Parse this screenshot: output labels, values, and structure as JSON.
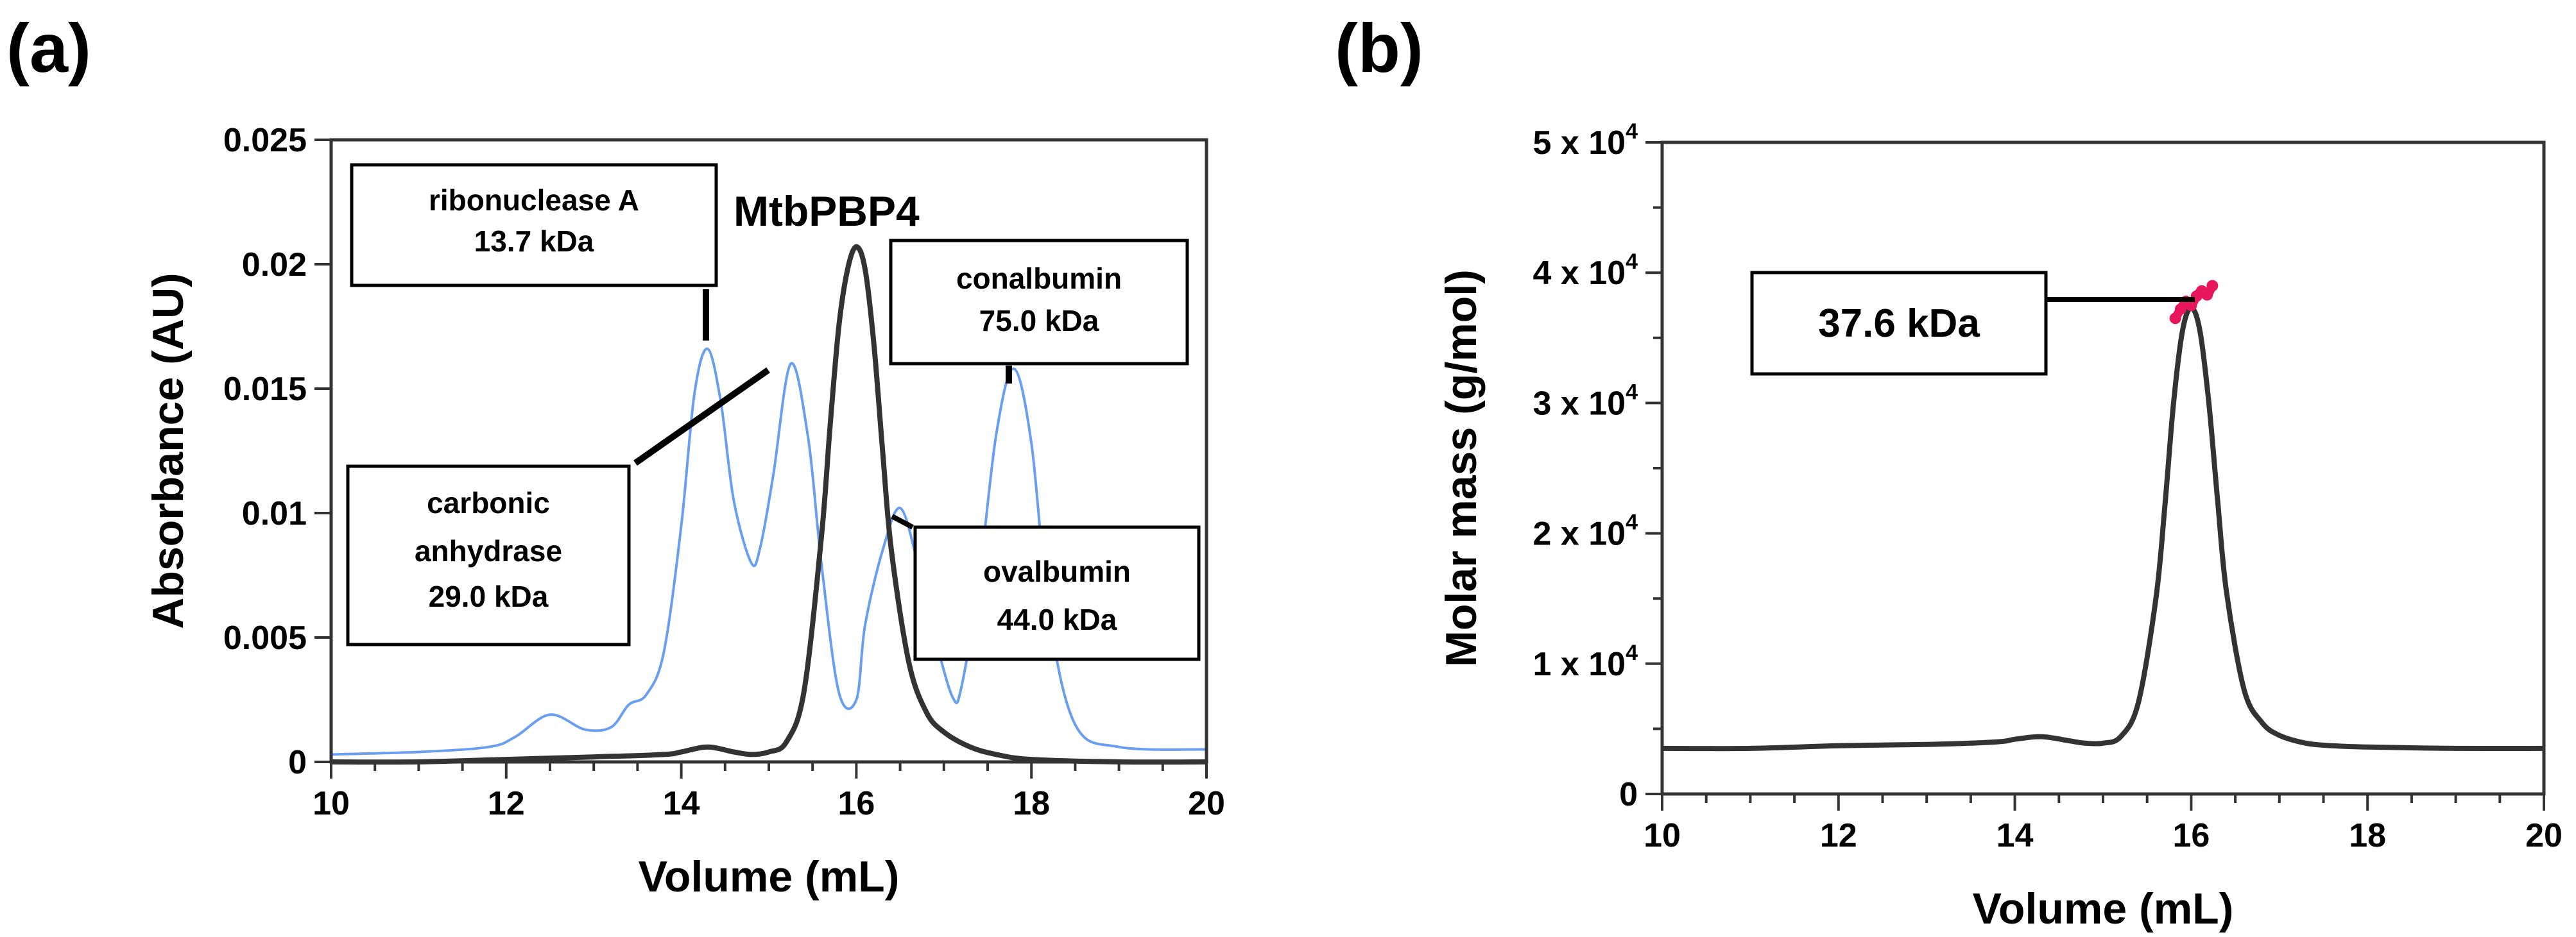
{
  "panels": {
    "a": {
      "label": "(a)"
    },
    "b": {
      "label": "(b)"
    }
  },
  "colors": {
    "standard": "#6a9ef0",
    "sample": "#333333",
    "molar_mass": "#e8175d"
  },
  "chart_data": [
    {
      "type": "line",
      "panel": "(a)",
      "xlabel": "Volume (mL)",
      "ylabel": "Absorbance (AU)",
      "xlim": [
        10,
        20
      ],
      "ylim": [
        0,
        0.025
      ],
      "xticks": [
        "10",
        "12",
        "14",
        "16",
        "18",
        "20"
      ],
      "yticks": [
        "0",
        "0.005",
        "0.01",
        "0.015",
        "0.02",
        "0.025"
      ],
      "grid": false,
      "series": [
        {
          "color": "#6a9ef0",
          "x": [
            10.0,
            11.0,
            11.8,
            12.1,
            12.5,
            12.9,
            13.2,
            13.4,
            13.6,
            13.8,
            14.0,
            14.15,
            14.3,
            14.45,
            14.6,
            14.8,
            14.9,
            15.05,
            15.25,
            15.45,
            15.6,
            15.8,
            16.0,
            16.1,
            16.3,
            16.5,
            16.7,
            16.9,
            17.1,
            17.2,
            17.4,
            17.6,
            17.8,
            18.0,
            18.2,
            18.5,
            19.0,
            20.0
          ],
          "y": [
            0.0003,
            0.0004,
            0.0006,
            0.001,
            0.0019,
            0.0013,
            0.0014,
            0.0023,
            0.0027,
            0.0044,
            0.0095,
            0.0148,
            0.0166,
            0.0145,
            0.0105,
            0.008,
            0.0086,
            0.0115,
            0.016,
            0.013,
            0.008,
            0.0028,
            0.0025,
            0.0055,
            0.0085,
            0.0102,
            0.008,
            0.005,
            0.0026,
            0.003,
            0.0073,
            0.0132,
            0.0158,
            0.0128,
            0.006,
            0.0015,
            0.0006,
            0.0005
          ]
        },
        {
          "color": "#333333",
          "x": [
            10.0,
            11.0,
            12.0,
            13.0,
            13.8,
            14.0,
            14.3,
            14.6,
            14.8,
            15.0,
            15.2,
            15.4,
            15.6,
            15.7,
            15.8,
            15.9,
            16.0,
            16.1,
            16.2,
            16.3,
            16.4,
            16.6,
            16.8,
            17.0,
            17.3,
            17.6,
            18.0,
            19.0,
            20.0
          ],
          "y": [
            0.0,
            0.0,
            0.0001,
            0.0002,
            0.0003,
            0.0004,
            0.0006,
            0.0004,
            0.0003,
            0.0004,
            0.0008,
            0.0028,
            0.009,
            0.0135,
            0.0175,
            0.0198,
            0.0207,
            0.0198,
            0.0168,
            0.0125,
            0.0085,
            0.004,
            0.002,
            0.0012,
            0.0006,
            0.0003,
            0.0001,
            0.0,
            0.0
          ]
        }
      ],
      "annotations": [
        {
          "lines": [
            "MtbPBP4"
          ],
          "at": [
            16.0,
            0.0207
          ]
        },
        {
          "lines": [
            "ribonuclease A",
            "13.7 kDa"
          ],
          "at": [
            14.3,
            0.0166
          ]
        },
        {
          "lines": [
            "carbonic",
            "anhydrase",
            "29.0 kDa"
          ],
          "at": [
            15.25,
            0.016
          ]
        },
        {
          "lines": [
            "conalbumin",
            "75.0 kDa"
          ],
          "at": [
            17.8,
            0.0158
          ]
        },
        {
          "lines": [
            "ovalbumin",
            "44.0 kDa"
          ],
          "at": [
            16.5,
            0.0102
          ]
        }
      ]
    },
    {
      "type": "line",
      "panel": "(b)",
      "xlabel": "Volume (mL)",
      "ylabel": "Molar mass (g/mol)",
      "xlim": [
        10,
        20
      ],
      "ylim": [
        0,
        50000
      ],
      "xticks": [
        "10",
        "12",
        "14",
        "16",
        "18",
        "20"
      ],
      "yticks": [
        {
          "base": "0",
          "exp": ""
        },
        {
          "base": "1 x 10",
          "exp": "4"
        },
        {
          "base": "2 x 10",
          "exp": "4"
        },
        {
          "base": "3 x 10",
          "exp": "4"
        },
        {
          "base": "4 x 10",
          "exp": "4"
        },
        {
          "base": "5 x 10",
          "exp": "4"
        }
      ],
      "grid": false,
      "series": [
        {
          "color": "#333333",
          "x": [
            10.0,
            11.0,
            12.0,
            13.0,
            13.8,
            14.0,
            14.3,
            14.6,
            14.8,
            15.0,
            15.2,
            15.4,
            15.6,
            15.7,
            15.8,
            15.9,
            16.0,
            16.1,
            16.2,
            16.3,
            16.4,
            16.6,
            16.8,
            17.0,
            17.3,
            17.6,
            18.0,
            19.0,
            20.0
          ],
          "y": [
            3500,
            3500,
            3700,
            3800,
            4000,
            4200,
            4400,
            4100,
            3900,
            3900,
            4400,
            7000,
            15000,
            22000,
            30000,
            35500,
            37300,
            35500,
            30000,
            22500,
            15500,
            8000,
            5500,
            4500,
            3900,
            3700,
            3600,
            3500,
            3500
          ]
        },
        {
          "color": "#e8175d",
          "x": [
            15.82,
            15.88,
            15.94,
            16.0,
            16.06,
            16.12,
            16.18,
            16.24
          ],
          "y": [
            36500,
            37200,
            37800,
            37500,
            38200,
            38600,
            38300,
            39000
          ]
        }
      ],
      "annotations": [
        {
          "lines": [
            "37.6 kDa"
          ],
          "at": [
            16.0,
            37500
          ]
        }
      ]
    }
  ]
}
